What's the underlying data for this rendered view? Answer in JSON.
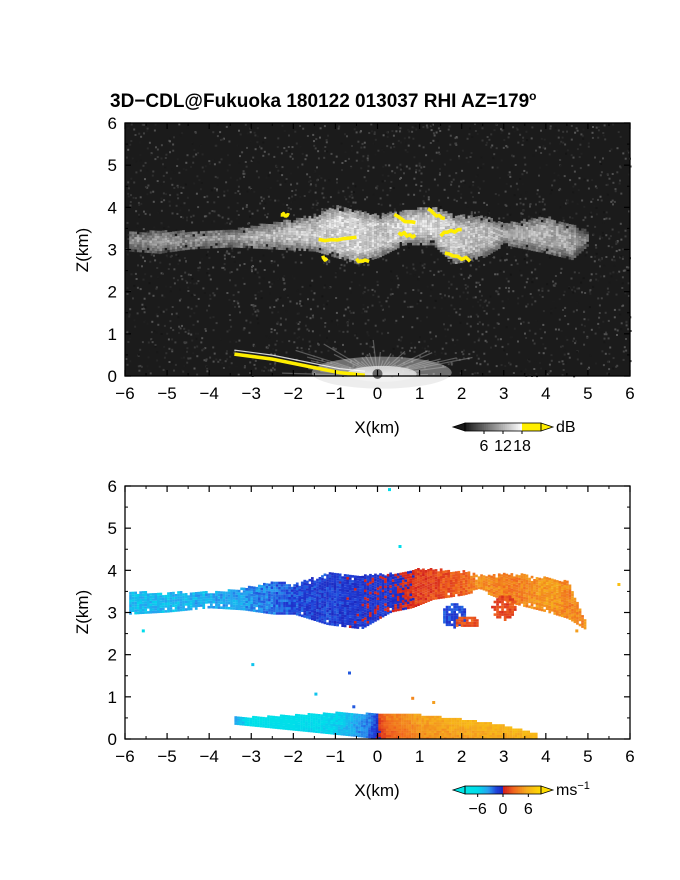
{
  "figure": {
    "title": "3D−CDL@Fukuoka 180122 013037 RHI AZ=179",
    "title_degree": "o"
  },
  "chart_data": [
    {
      "type": "heatmap",
      "panel": "reflectivity",
      "xlabel": "X(km)",
      "ylabel": "Z(km)",
      "xlim": [
        -6,
        6
      ],
      "ylim": [
        0,
        6
      ],
      "x_ticks": [
        -6,
        -5,
        -4,
        -3,
        -2,
        -1,
        0,
        1,
        2,
        3,
        4,
        5,
        6
      ],
      "y_ticks": [
        0,
        1,
        2,
        3,
        4,
        5,
        6
      ],
      "x_tick_labels": [
        "−6",
        "−5",
        "−4",
        "−3",
        "−2",
        "−1",
        "0",
        "1",
        "2",
        "3",
        "4",
        "5",
        "6"
      ],
      "y_tick_labels": [
        "0",
        "1",
        "2",
        "3",
        "4",
        "5",
        "6"
      ],
      "colorbar": {
        "unit": "dB",
        "ticks": [
          6,
          12,
          18
        ],
        "tick_labels": [
          "6",
          "12",
          "18"
        ],
        "range": [
          0,
          24
        ],
        "colors": [
          "#222222",
          "#ffffff",
          "#ffee00"
        ]
      },
      "background_noise_db": 3,
      "cloud_layer": [
        {
          "x": -5.9,
          "zb": 2.95,
          "zt": 3.4,
          "db": 10
        },
        {
          "x": -5.2,
          "zb": 2.9,
          "zt": 3.4,
          "db": 11
        },
        {
          "x": -4.5,
          "zb": 3.0,
          "zt": 3.4,
          "db": 11
        },
        {
          "x": -3.5,
          "zb": 3.05,
          "zt": 3.45,
          "db": 12
        },
        {
          "x": -2.5,
          "zb": 3.0,
          "zt": 3.6,
          "db": 13
        },
        {
          "x": -1.5,
          "zb": 2.95,
          "zt": 3.8,
          "db": 14
        },
        {
          "x": -1.0,
          "zb": 2.8,
          "zt": 4.0,
          "db": 15
        },
        {
          "x": -0.5,
          "zb": 2.65,
          "zt": 3.9,
          "db": 15
        },
        {
          "x": 0.0,
          "zb": 2.8,
          "zt": 3.8,
          "db": 14
        },
        {
          "x": 0.6,
          "zb": 3.1,
          "zt": 3.9,
          "db": 15
        },
        {
          "x": 1.3,
          "zb": 3.1,
          "zt": 4.0,
          "db": 15
        },
        {
          "x": 1.8,
          "zb": 2.65,
          "zt": 3.8,
          "db": 14
        },
        {
          "x": 2.5,
          "zb": 2.8,
          "zt": 3.75,
          "db": 13
        },
        {
          "x": 3.0,
          "zb": 3.1,
          "zt": 3.6,
          "db": 12
        },
        {
          "x": 4.0,
          "zb": 2.9,
          "zt": 3.75,
          "db": 12
        },
        {
          "x": 4.6,
          "zb": 2.75,
          "zt": 3.55,
          "db": 11
        },
        {
          "x": 5.0,
          "zb": 3.1,
          "zt": 3.4,
          "db": 8
        }
      ],
      "strong_echo_segments": [
        {
          "x": [
            -2.3,
            -2.1
          ],
          "z": [
            3.85,
            3.8
          ]
        },
        {
          "x": [
            -1.4,
            -0.5
          ],
          "z": [
            3.2,
            3.3
          ]
        },
        {
          "x": [
            -0.5,
            -0.2
          ],
          "z": [
            2.75,
            2.7
          ]
        },
        {
          "x": [
            0.4,
            0.9
          ],
          "z": [
            3.8,
            3.6
          ]
        },
        {
          "x": [
            0.5,
            0.9
          ],
          "z": [
            3.4,
            3.3
          ]
        },
        {
          "x": [
            1.2,
            1.6
          ],
          "z": [
            3.95,
            3.7
          ]
        },
        {
          "x": [
            1.5,
            2.0
          ],
          "z": [
            3.35,
            3.5
          ]
        },
        {
          "x": [
            1.6,
            2.2
          ],
          "z": [
            2.9,
            2.75
          ]
        },
        {
          "x": [
            -1.3,
            -1.2
          ],
          "z": [
            2.85,
            2.7
          ]
        }
      ],
      "surface_echo": {
        "x": [
          -3.4,
          -2.5,
          -1.5,
          -0.9,
          -0.3
        ],
        "z": [
          0.52,
          0.4,
          0.2,
          0.08,
          0.02
        ],
        "db": 20
      }
    },
    {
      "type": "heatmap",
      "panel": "doppler_velocity",
      "xlabel": "X(km)",
      "ylabel": "Z(km)",
      "xlim": [
        -6,
        6
      ],
      "ylim": [
        0,
        6
      ],
      "x_ticks": [
        -6,
        -5,
        -4,
        -3,
        -2,
        -1,
        0,
        1,
        2,
        3,
        4,
        5,
        6
      ],
      "y_ticks": [
        0,
        1,
        2,
        3,
        4,
        5,
        6
      ],
      "x_tick_labels": [
        "−6",
        "−5",
        "−4",
        "−3",
        "−2",
        "−1",
        "0",
        "1",
        "2",
        "3",
        "4",
        "5",
        "6"
      ],
      "y_tick_labels": [
        "0",
        "1",
        "2",
        "3",
        "4",
        "5",
        "6"
      ],
      "colorbar": {
        "unit": "ms",
        "unit_exponent": "−1",
        "ticks": [
          -6,
          0,
          6
        ],
        "tick_labels": [
          "−6",
          "0",
          "6"
        ],
        "range": [
          -9,
          9
        ],
        "colors": [
          "#00e5e5",
          "#33a8f0",
          "#2040d8",
          "#d81818",
          "#f07818",
          "#ffd700"
        ]
      },
      "cloud_layer": [
        {
          "x": -5.9,
          "zb": 2.95,
          "zt": 3.45,
          "v": -4.5
        },
        {
          "x": -5.0,
          "zb": 3.0,
          "zt": 3.45,
          "v": -4.5
        },
        {
          "x": -4.0,
          "zb": 3.1,
          "zt": 3.45,
          "v": -4.0
        },
        {
          "x": -3.2,
          "zb": 3.05,
          "zt": 3.55,
          "v": -3.5
        },
        {
          "x": -2.5,
          "zb": 2.95,
          "zt": 3.7,
          "v": -2.5
        },
        {
          "x": -2.0,
          "zb": 2.95,
          "zt": 3.65,
          "v": -1.5
        },
        {
          "x": -1.2,
          "zb": 2.7,
          "zt": 3.9,
          "v": -1.2
        },
        {
          "x": -0.4,
          "zb": 2.6,
          "zt": 3.85,
          "v": -0.8
        },
        {
          "x": 0.3,
          "zb": 3.0,
          "zt": 3.9,
          "v": -0.6
        },
        {
          "x": 0.8,
          "zb": 3.1,
          "zt": 4.0,
          "v": 0.8
        },
        {
          "x": 1.3,
          "zb": 3.3,
          "zt": 4.0,
          "v": 1.5
        },
        {
          "x": 2.0,
          "zb": 3.4,
          "zt": 3.95,
          "v": 2.5
        },
        {
          "x": 2.4,
          "zb": 3.5,
          "zt": 3.85,
          "v": 4.5
        },
        {
          "x": 3.2,
          "zb": 3.2,
          "zt": 3.9,
          "v": 3.5
        },
        {
          "x": 4.0,
          "zb": 3.0,
          "zt": 3.8,
          "v": 5.0
        },
        {
          "x": 4.5,
          "zb": 2.85,
          "zt": 3.7,
          "v": 4.0
        },
        {
          "x": 4.9,
          "zb": 2.6,
          "zt": 2.8,
          "v": 4.0
        }
      ],
      "cells": [
        {
          "x": 1.8,
          "z": 2.9,
          "rx": 0.3,
          "rz": 0.28,
          "v": -1.5
        },
        {
          "x": 3.0,
          "z": 3.1,
          "rx": 0.3,
          "rz": 0.3,
          "v": 1.5
        },
        {
          "x": 2.1,
          "z": 2.75,
          "rx": 0.3,
          "rz": 0.15,
          "v": 2.0
        }
      ],
      "low_echo": {
        "x": [
          -3.4,
          -3.0,
          -2.0,
          -1.0,
          -0.2,
          0.0,
          0.2,
          1.0,
          2.0,
          3.0,
          3.8
        ],
        "ztop": [
          0.5,
          0.5,
          0.55,
          0.6,
          0.58,
          0.55,
          0.6,
          0.55,
          0.45,
          0.3,
          0.1
        ],
        "v": [
          -3.0,
          -6.5,
          -6.0,
          -5.0,
          -2.0,
          0.0,
          2.0,
          4.0,
          5.0,
          5.5,
          6.5
        ]
      },
      "scattered_points": [
        {
          "x": 0.25,
          "z": 5.95,
          "v": -6
        },
        {
          "x": 0.5,
          "z": 4.6,
          "v": -6
        },
        {
          "x": -5.6,
          "z": 2.6,
          "v": -6
        },
        {
          "x": 4.7,
          "z": 2.6,
          "v": 5
        },
        {
          "x": 5.7,
          "z": 3.7,
          "v": 7
        },
        {
          "x": -3.0,
          "z": 1.8,
          "v": -5
        },
        {
          "x": -1.5,
          "z": 1.1,
          "v": -5
        },
        {
          "x": -0.7,
          "z": 1.6,
          "v": -2
        },
        {
          "x": -0.6,
          "z": 0.8,
          "v": -2
        },
        {
          "x": 0.8,
          "z": 1.0,
          "v": 4
        },
        {
          "x": 1.3,
          "z": 0.9,
          "v": 5
        }
      ]
    }
  ]
}
